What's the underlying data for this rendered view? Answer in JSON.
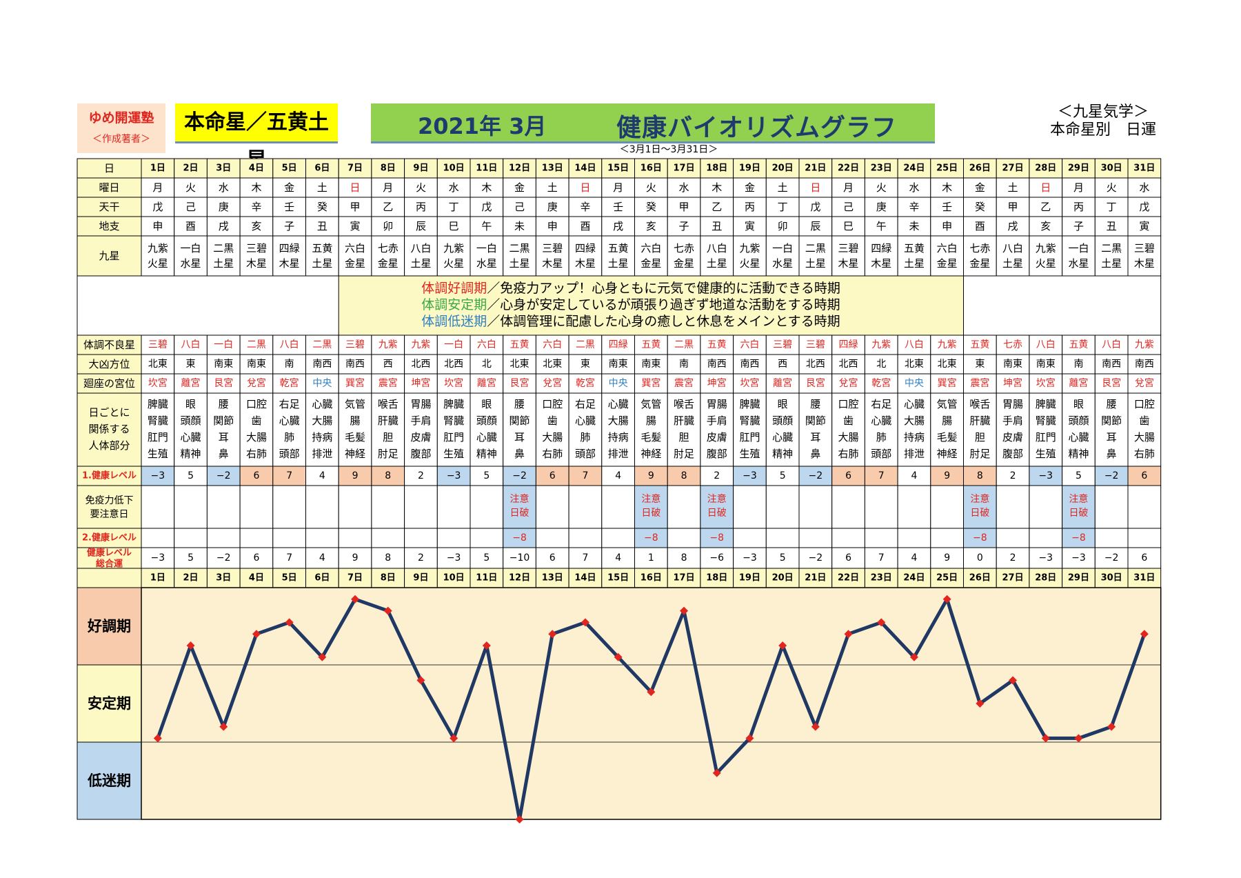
{
  "header": {
    "brand": "ゆめ開運塾",
    "brand_sub": "＜作成著者＞",
    "honmei": "本命星／五黄土星",
    "title_date": "2021年 3月",
    "title_name": "健康バイオリズムグラフ",
    "range": "＜3月1日～3月31日＞",
    "kyusei_l1": "＜九星気学＞",
    "kyusei_l2": "本命星別　日運"
  },
  "row_labels": {
    "day": "日",
    "weekday": "曜日",
    "kan": "天干",
    "shi": "地支",
    "star": "九星",
    "bad_star": "体調不良星",
    "direction": "大凶方位",
    "palace": "廻座の宮位",
    "body": "日ごとに関係する人体部分",
    "level1": "1.健康レベル",
    "immune": "免疫力低下要注意日",
    "level2": "2.健康レベル",
    "total": "健康レベル総合運"
  },
  "legend": [
    {
      "key": "体調好調期",
      "text": "／免疫力アップ！心身ともに元気で健康的に活動できる時期",
      "color": "#e0261f"
    },
    {
      "key": "体調安定期",
      "text": "／心身が安定しているが頑張り過ぎず地道な活動をする時期",
      "color": "#3aa845"
    },
    {
      "key": "体調低迷期",
      "text": "／体調管理に配慮した心身の癒しと休息をメインとする時期",
      "color": "#2f7fc1"
    }
  ],
  "days": [
    "1日",
    "2日",
    "3日",
    "4日",
    "5日",
    "6日",
    "7日",
    "8日",
    "9日",
    "10日",
    "11日",
    "12日",
    "13日",
    "14日",
    "15日",
    "16日",
    "17日",
    "18日",
    "19日",
    "20日",
    "21日",
    "22日",
    "23日",
    "24日",
    "25日",
    "26日",
    "27日",
    "28日",
    "29日",
    "30日",
    "31日"
  ],
  "weekdays": [
    "月",
    "火",
    "水",
    "木",
    "金",
    "土",
    "日",
    "月",
    "火",
    "水",
    "木",
    "金",
    "土",
    "日",
    "月",
    "火",
    "水",
    "木",
    "金",
    "土",
    "日",
    "月",
    "火",
    "水",
    "木",
    "金",
    "土",
    "日",
    "月",
    "火",
    "水"
  ],
  "kan": [
    "戊",
    "己",
    "庚",
    "辛",
    "壬",
    "癸",
    "甲",
    "乙",
    "丙",
    "丁",
    "戊",
    "己",
    "庚",
    "辛",
    "壬",
    "癸",
    "甲",
    "乙",
    "丙",
    "丁",
    "戊",
    "己",
    "庚",
    "辛",
    "壬",
    "癸",
    "甲",
    "乙",
    "丙",
    "丁",
    "戊"
  ],
  "shi": [
    "申",
    "酉",
    "戌",
    "亥",
    "子",
    "丑",
    "寅",
    "卯",
    "辰",
    "巳",
    "午",
    "未",
    "申",
    "酉",
    "戌",
    "亥",
    "子",
    "丑",
    "寅",
    "卯",
    "辰",
    "巳",
    "午",
    "未",
    "申",
    "酉",
    "戌",
    "亥",
    "子",
    "丑",
    "寅"
  ],
  "stars": [
    [
      "九紫",
      "火星"
    ],
    [
      "一白",
      "水星"
    ],
    [
      "二黒",
      "土星"
    ],
    [
      "三碧",
      "木星"
    ],
    [
      "四緑",
      "木星"
    ],
    [
      "五黄",
      "土星"
    ],
    [
      "六白",
      "金星"
    ],
    [
      "七赤",
      "金星"
    ],
    [
      "八白",
      "土星"
    ],
    [
      "九紫",
      "火星"
    ],
    [
      "一白",
      "水星"
    ],
    [
      "二黒",
      "土星"
    ],
    [
      "三碧",
      "木星"
    ],
    [
      "四緑",
      "木星"
    ],
    [
      "五黄",
      "土星"
    ],
    [
      "六白",
      "金星"
    ],
    [
      "七赤",
      "金星"
    ],
    [
      "八白",
      "土星"
    ],
    [
      "九紫",
      "火星"
    ],
    [
      "一白",
      "水星"
    ],
    [
      "二黒",
      "土星"
    ],
    [
      "三碧",
      "木星"
    ],
    [
      "四緑",
      "木星"
    ],
    [
      "五黄",
      "土星"
    ],
    [
      "六白",
      "金星"
    ],
    [
      "七赤",
      "金星"
    ],
    [
      "八白",
      "土星"
    ],
    [
      "九紫",
      "火星"
    ],
    [
      "一白",
      "水星"
    ],
    [
      "二黒",
      "土星"
    ],
    [
      "三碧",
      "木星"
    ]
  ],
  "bad_stars": [
    "三碧",
    "八白",
    "一白",
    "二黒",
    "八白",
    "二黒",
    "三碧",
    "九紫",
    "九紫",
    "一白",
    "六白",
    "五黄",
    "六白",
    "二黒",
    "四緑",
    "五黄",
    "二黒",
    "五黄",
    "六白",
    "三碧",
    "三碧",
    "四緑",
    "九紫",
    "八白",
    "九紫",
    "五黄",
    "七赤",
    "八白",
    "五黄",
    "八白",
    "九紫"
  ],
  "directions": [
    "北東",
    "東",
    "南東",
    "南東",
    "南",
    "南西",
    "南西",
    "西",
    "北西",
    "北西",
    "北",
    "北東",
    "北東",
    "東",
    "南東",
    "南東",
    "南",
    "南西",
    "南西",
    "西",
    "北西",
    "北西",
    "北",
    "北東",
    "北東",
    "東",
    "南東",
    "南東",
    "南",
    "南西",
    "南西"
  ],
  "palaces": [
    "坎宮",
    "離宮",
    "艮宮",
    "兌宮",
    "乾宮",
    "中央",
    "巽宮",
    "震宮",
    "坤宮",
    "坎宮",
    "離宮",
    "艮宮",
    "兌宮",
    "乾宮",
    "中央",
    "巽宮",
    "震宮",
    "坤宮",
    "坎宮",
    "離宮",
    "艮宮",
    "兌宮",
    "乾宮",
    "中央",
    "巽宮",
    "震宮",
    "坤宮",
    "坎宮",
    "離宮",
    "艮宮",
    "兌宮"
  ],
  "body_parts": [
    [
      "脾臓",
      "腎臓",
      "肛門",
      "生殖"
    ],
    [
      "眼",
      "頭顔",
      "心臓",
      "精神"
    ],
    [
      "腰",
      "関節",
      "耳",
      "鼻"
    ],
    [
      "口腔",
      "歯",
      "大腸",
      "右肺"
    ],
    [
      "右足",
      "心臓",
      "肺",
      "頭部"
    ],
    [
      "心臓",
      "大腸",
      "持病",
      "排泄"
    ],
    [
      "気管",
      "腸",
      "毛髪",
      "神経"
    ],
    [
      "喉舌",
      "肝臓",
      "胆",
      "肘足"
    ],
    [
      "胃腸",
      "手肩",
      "皮膚",
      "腹部"
    ],
    [
      "脾臓",
      "腎臓",
      "肛門",
      "生殖"
    ],
    [
      "眼",
      "頭顔",
      "心臓",
      "精神"
    ],
    [
      "腰",
      "関節",
      "耳",
      "鼻"
    ],
    [
      "口腔",
      "歯",
      "大腸",
      "右肺"
    ],
    [
      "右足",
      "心臓",
      "肺",
      "頭部"
    ],
    [
      "心臓",
      "大腸",
      "持病",
      "排泄"
    ],
    [
      "気管",
      "腸",
      "毛髪",
      "神経"
    ],
    [
      "喉舌",
      "肝臓",
      "胆",
      "肘足"
    ],
    [
      "胃腸",
      "手肩",
      "皮膚",
      "腹部"
    ],
    [
      "脾臓",
      "腎臓",
      "肛門",
      "生殖"
    ],
    [
      "眼",
      "頭顔",
      "心臓",
      "精神"
    ],
    [
      "腰",
      "関節",
      "耳",
      "鼻"
    ],
    [
      "口腔",
      "歯",
      "大腸",
      "右肺"
    ],
    [
      "右足",
      "心臓",
      "肺",
      "頭部"
    ],
    [
      "心臓",
      "大腸",
      "持病",
      "排泄"
    ],
    [
      "気管",
      "腸",
      "毛髪",
      "神経"
    ],
    [
      "喉舌",
      "肝臓",
      "胆",
      "肘足"
    ],
    [
      "胃腸",
      "手肩",
      "皮膚",
      "腹部"
    ],
    [
      "脾臓",
      "腎臓",
      "肛門",
      "生殖"
    ],
    [
      "眼",
      "頭顔",
      "心臓",
      "精神"
    ],
    [
      "腰",
      "関節",
      "耳",
      "鼻"
    ],
    [
      "口腔",
      "歯",
      "大腸",
      "右肺"
    ]
  ],
  "level1": [
    "−3",
    "5",
    "−2",
    "6",
    "7",
    "4",
    "9",
    "8",
    "2",
    "−3",
    "5",
    "−2",
    "6",
    "7",
    "4",
    "9",
    "8",
    "2",
    "−3",
    "5",
    "−2",
    "6",
    "7",
    "4",
    "9",
    "8",
    "2",
    "−3",
    "5",
    "−2",
    "6"
  ],
  "immune": [
    "",
    "",
    "",
    "",
    "",
    "",
    "",
    "",
    "",
    "",
    "",
    "注意日破",
    "",
    "",
    "",
    "注意日破",
    "",
    "注意日破",
    "",
    "",
    "",
    "",
    "",
    "",
    "",
    "注意日破",
    "",
    "",
    "注意日破",
    "",
    ""
  ],
  "level2": [
    "",
    "",
    "",
    "",
    "",
    "",
    "",
    "",
    "",
    "",
    "",
    "−8",
    "",
    "",
    "",
    "−8",
    "",
    "−8",
    "",
    "",
    "",
    "",
    "",
    "",
    "",
    "−8",
    "",
    "",
    "−8",
    "",
    ""
  ],
  "total_text": [
    "−3",
    "5",
    "−2",
    "6",
    "7",
    "4",
    "9",
    "8",
    "2",
    "−3",
    "5",
    "−10",
    "6",
    "7",
    "4",
    "1",
    "8",
    "−6",
    "−3",
    "5",
    "−2",
    "6",
    "7",
    "4",
    "9",
    "0",
    "2",
    "−3",
    "−3",
    "−2",
    "6"
  ],
  "zones": [
    "好調期",
    "安定期",
    "低迷期"
  ],
  "colors": {
    "header_yellow": "#fdf9c4",
    "level_high": "#f8cbad",
    "level_low": "#bdd7ee",
    "zone_high": "#f8cbad",
    "zone_mid": "#fdf9c4",
    "zone_low": "#bdd7ee",
    "plot_bg": "#fdf0d0",
    "line": "#1f3864",
    "marker": "#e0261f",
    "red": "#e0261f",
    "blue": "#2f7fc1"
  },
  "chart_data": {
    "type": "line",
    "categories": [
      "1日",
      "2日",
      "3日",
      "4日",
      "5日",
      "6日",
      "7日",
      "8日",
      "9日",
      "10日",
      "11日",
      "12日",
      "13日",
      "14日",
      "15日",
      "16日",
      "17日",
      "18日",
      "19日",
      "20日",
      "21日",
      "22日",
      "23日",
      "24日",
      "25日",
      "26日",
      "27日",
      "28日",
      "29日",
      "30日",
      "31日"
    ],
    "series": [
      {
        "values": [
          -3,
          5,
          -2,
          6,
          7,
          4,
          9,
          8,
          2,
          -3,
          5,
          -10,
          6,
          7,
          4,
          1,
          8,
          -6,
          -3,
          5,
          -2,
          6,
          7,
          4,
          9,
          0,
          2,
          -3,
          -3,
          -2,
          6
        ]
      }
    ],
    "ylim": [
      -10,
      10
    ],
    "xlabel": "",
    "ylabel": "",
    "grid": true
  }
}
